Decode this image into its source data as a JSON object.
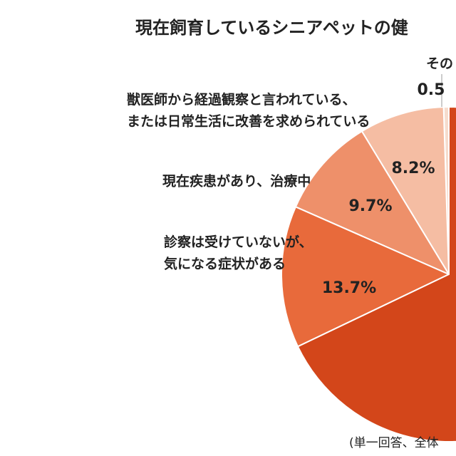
{
  "chart_data": {
    "type": "pie",
    "title": "現在飼育しているシニアペットの健",
    "footnote": "(単一回答、全体",
    "categories": [
      "その",
      "獣医師から経過観察と言われている、\nまたは日常生活に改善を求められている",
      "現在疾患があり、治療中",
      "診察は受けていないが、\n気になる症状がある",
      null
    ],
    "values": [
      0.5,
      8.2,
      9.7,
      13.7,
      67.9
    ],
    "value_labels": [
      "0.5",
      "8.2%",
      "9.7%",
      "13.7%",
      null
    ],
    "colors": [
      "#f6dccd",
      "#f5bda3",
      "#ee906a",
      "#e86a3b",
      "#d3461a"
    ]
  }
}
